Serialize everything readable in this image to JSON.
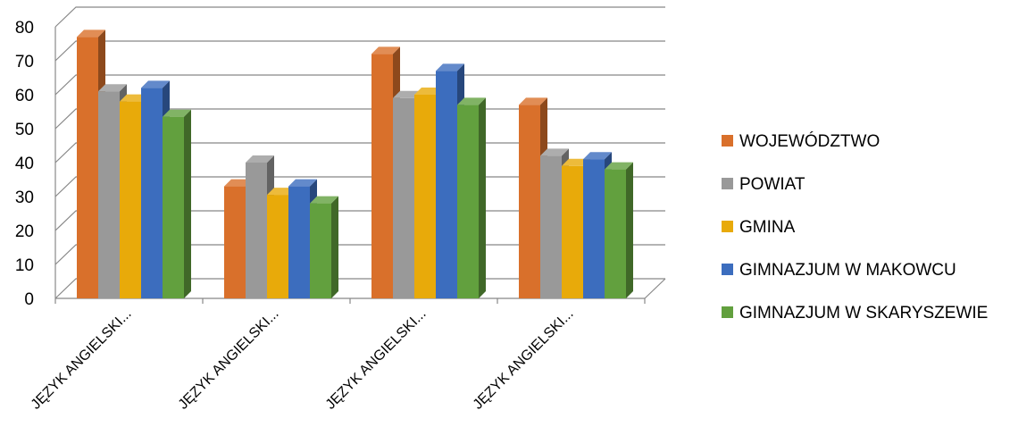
{
  "chart_data": {
    "type": "bar",
    "title": "",
    "xlabel": "",
    "ylabel": "",
    "ylim": [
      0,
      80
    ],
    "yticks": [
      0,
      10,
      20,
      30,
      40,
      50,
      60,
      70,
      80
    ],
    "grid": true,
    "three_d": true,
    "legend_position": "right",
    "categories": [
      "JĘZYK ANGIELSKI...",
      "JĘZYK ANGIELSKI...",
      "JĘZYK ANGIELSKI...",
      "JĘZYK ANGIELSKI..."
    ],
    "series": [
      {
        "name": "WOJEWÓDZTWO",
        "color": "#D9702B",
        "values": [
          77,
          33,
          72,
          57
        ]
      },
      {
        "name": "POWIAT",
        "color": "#999999",
        "values": [
          61,
          40,
          59,
          42
        ]
      },
      {
        "name": "GMINA",
        "color": "#E8AA0A",
        "values": [
          58,
          30.5,
          60,
          39
        ]
      },
      {
        "name": "GIMNAZJUM W MAKOWCU",
        "color": "#3C6DBE",
        "values": [
          62,
          33,
          67,
          41
        ]
      },
      {
        "name": "GIMNAZJUM W SKARYSZEWIE",
        "color": "#62A03E",
        "values": [
          53.5,
          28,
          57,
          38
        ]
      }
    ]
  }
}
